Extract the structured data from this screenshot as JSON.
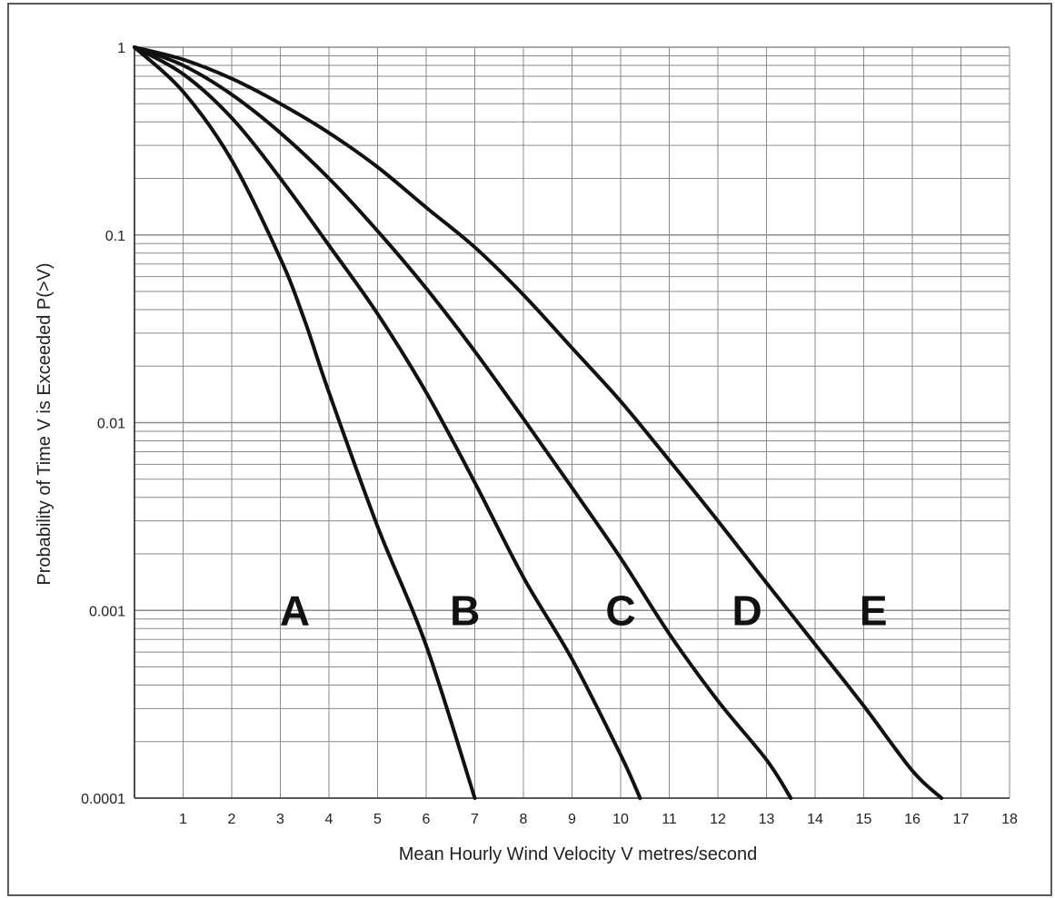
{
  "chart_data": {
    "type": "line",
    "title": "",
    "xlabel": "Mean Hourly Wind Velocity V metres/second",
    "ylabel": "Probability of Time V is Exceeded P(>V)",
    "xlim": [
      0,
      18
    ],
    "ylim": [
      0.0001,
      1
    ],
    "yscale": "log",
    "grid": true,
    "x_ticks": [
      "1",
      "2",
      "3",
      "4",
      "5",
      "6",
      "7",
      "8",
      "9",
      "10",
      "11",
      "12",
      "13",
      "14",
      "15",
      "16",
      "17",
      "18"
    ],
    "y_ticks": [
      "1",
      "0.1",
      "0.01",
      "0.001",
      "0.0001"
    ],
    "series": [
      {
        "name": "A",
        "x": [
          0,
          1,
          2,
          3,
          3.5,
          4,
          5,
          6,
          7
        ],
        "y": [
          1,
          0.58,
          0.25,
          0.075,
          0.035,
          0.0145,
          0.0028,
          0.00065,
          0.0001
        ]
      },
      {
        "name": "B",
        "x": [
          0,
          1,
          2,
          3,
          4,
          5,
          6,
          7,
          8,
          9,
          10,
          10.4
        ],
        "y": [
          1,
          0.72,
          0.42,
          0.2,
          0.088,
          0.038,
          0.0145,
          0.0048,
          0.0015,
          0.00055,
          0.00017,
          0.0001
        ]
      },
      {
        "name": "C",
        "x": [
          0,
          1,
          2,
          3,
          4,
          5,
          6,
          7,
          8,
          9,
          10,
          11,
          12,
          13,
          13.5
        ],
        "y": [
          1,
          0.8,
          0.56,
          0.35,
          0.2,
          0.105,
          0.052,
          0.024,
          0.0105,
          0.0045,
          0.0019,
          0.00075,
          0.00033,
          0.00016,
          0.0001
        ]
      },
      {
        "name": "D",
        "x": [
          0,
          1,
          2,
          3,
          4,
          5,
          6,
          7,
          8,
          9,
          10,
          11,
          12,
          13,
          14,
          15,
          16,
          16.6
        ],
        "y": [
          1,
          0.86,
          0.68,
          0.5,
          0.35,
          0.23,
          0.14,
          0.086,
          0.048,
          0.025,
          0.013,
          0.0063,
          0.003,
          0.0014,
          0.00066,
          0.00031,
          0.00014,
          0.0001
        ]
      }
    ],
    "region_labels": [
      "A",
      "B",
      "C",
      "D",
      "E"
    ]
  }
}
